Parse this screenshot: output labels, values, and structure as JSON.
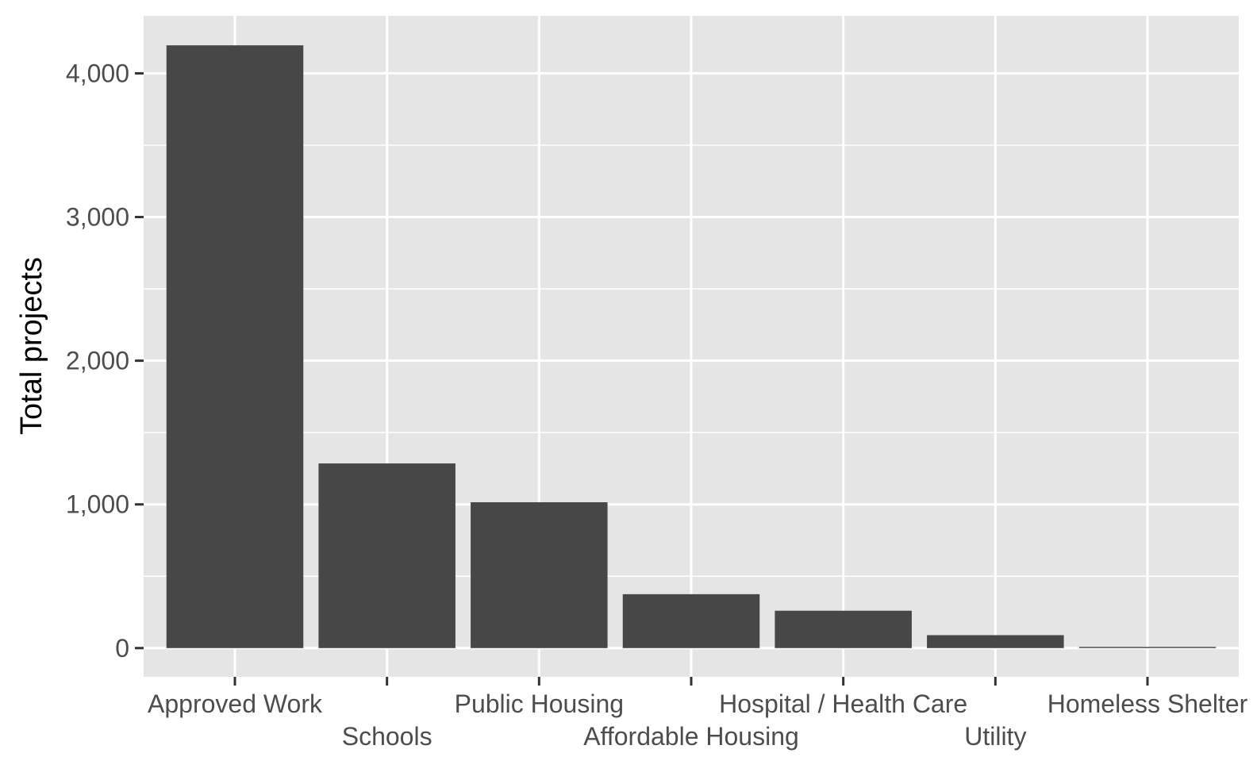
{
  "chart_data": {
    "type": "bar",
    "title": "",
    "xlabel": "",
    "ylabel": "Total projects",
    "categories": [
      "Approved Work",
      "Schools",
      "Public Housing",
      "Affordable Housing",
      "Hospital / Health Care",
      "Utility",
      "Homeless Shelter"
    ],
    "values": [
      4195,
      1285,
      1015,
      375,
      260,
      90,
      8
    ],
    "ylim": [
      -200,
      4400
    ],
    "yticks": [
      0,
      1000,
      2000,
      3000,
      4000
    ],
    "ytick_labels": [
      "0",
      "1,000",
      "2,000",
      "3,000",
      "4,000"
    ],
    "grid": true,
    "legend": "none",
    "colors": {
      "panel_background": "#e5e5e5",
      "grid": "#ffffff",
      "bar": "#474747",
      "tick": "#333333",
      "tick_text": "#4d4d4d",
      "axis_title": "#000000"
    }
  }
}
